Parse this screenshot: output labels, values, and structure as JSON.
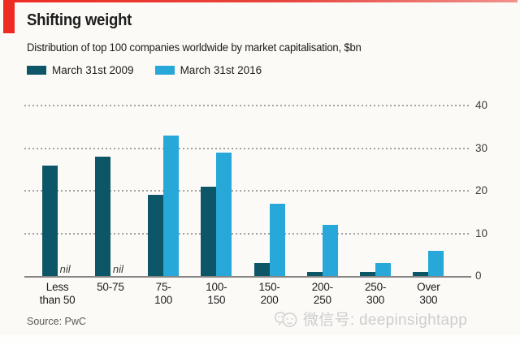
{
  "header": {
    "title": "Shifting weight",
    "subtitle": "Distribution of top 100 companies worldwide by market capitalisation, $bn"
  },
  "legend": {
    "items": [
      {
        "label": "March 31st 2009",
        "color": "#0c5668"
      },
      {
        "label": "March 31st 2016",
        "color": "#27a8d9"
      }
    ]
  },
  "chart_data": {
    "type": "bar",
    "title": "Shifting weight",
    "subtitle": "Distribution of top 100 companies worldwide by market capitalisation, $bn",
    "categories": [
      "Less than 50",
      "50-75",
      "75-100",
      "100-150",
      "150-200",
      "200-250",
      "250-300",
      "Over 300"
    ],
    "tick_labels": [
      "Less\nthan 50",
      "50-75",
      "75-\n100",
      "100-\n150",
      "150-\n200",
      "200-\n250",
      "250-\n300",
      "Over\n300"
    ],
    "series": [
      {
        "name": "March 31st 2009",
        "color": "#0c5668",
        "values": [
          26,
          28,
          19,
          21,
          3,
          1,
          1,
          1
        ]
      },
      {
        "name": "March 31st 2016",
        "color": "#27a8d9",
        "values": [
          null,
          null,
          33,
          29,
          17,
          12,
          3,
          6
        ]
      }
    ],
    "nil_label": "nil",
    "y_ticks": [
      0,
      10,
      20,
      30,
      40
    ],
    "ylim": [
      0,
      40
    ],
    "grid": "horizontal-dotted",
    "legend_position": "top-left",
    "yaxis_side": "right"
  },
  "source": {
    "label": "Source: PwC"
  },
  "watermark": {
    "text": "微信号: deepinsightapp"
  },
  "accent": {
    "red": "#ee2b21"
  }
}
